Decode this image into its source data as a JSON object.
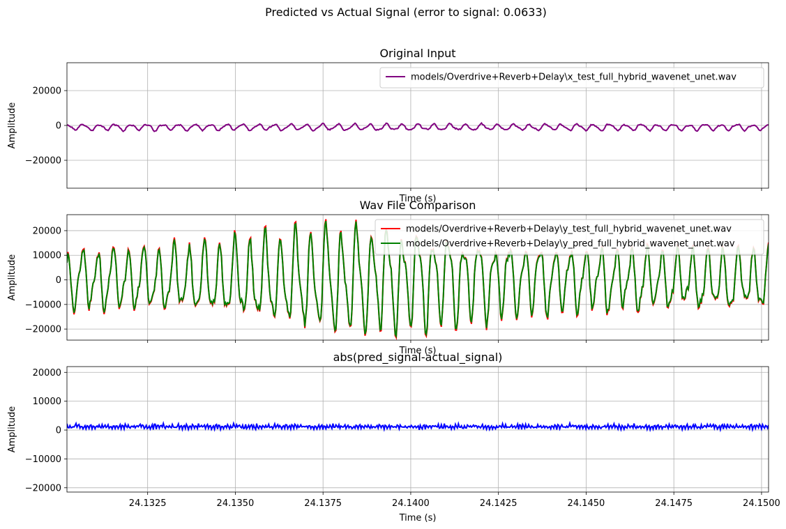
{
  "figure": {
    "suptitle": "Predicted vs Actual Signal (error to signal: 0.0633)"
  },
  "chart_data": [
    {
      "type": "line",
      "title": "Original Input",
      "xlabel": "Time (s)",
      "ylabel": "Amplitude",
      "xlim": [
        24.1302,
        24.1502
      ],
      "ylim": [
        -36000,
        36000
      ],
      "yticks": [
        -20000,
        0,
        20000
      ],
      "ytick_labels": [
        "−20000",
        "0",
        "20000"
      ],
      "show_xtick_labels": false,
      "grid": true,
      "legend_position": "upper right",
      "series": [
        {
          "name": "models/Overdrive+Reverb+Delay\\x_test_full_hybrid_wavenet_unet.wav",
          "color": "#800080",
          "generator": {
            "center": -1000,
            "amplitude": 1600,
            "cycles": 44,
            "noise": 600,
            "seed": 3
          }
        }
      ]
    },
    {
      "type": "line",
      "title": "Wav File Comparison",
      "xlabel": "Time (s)",
      "ylabel": "Amplitude",
      "xlim": [
        24.1302,
        24.1502
      ],
      "ylim": [
        -24500,
        26500
      ],
      "yticks": [
        -20000,
        -10000,
        0,
        10000,
        20000
      ],
      "ytick_labels": [
        "−20000",
        "−10000",
        "0",
        "10000",
        "20000"
      ],
      "show_xtick_labels": false,
      "grid": true,
      "legend_position": "upper right",
      "series": [
        {
          "name": "models/Overdrive+Reverb+Delay\\y_test_full_hybrid_wavenet_unet.wav",
          "color": "#ff0000",
          "generator": {
            "center": 0,
            "amplitude": 11000,
            "peak_amplitude": 19000,
            "cycles": 46,
            "noise": 3000,
            "seed": 7
          }
        },
        {
          "name": "models/Overdrive+Reverb+Delay\\y_pred_full_hybrid_wavenet_unet.wav",
          "color": "#008000",
          "generator": {
            "center": 0,
            "amplitude": 10500,
            "peak_amplitude": 18500,
            "cycles": 46,
            "noise": 2700,
            "seed": 7
          }
        }
      ]
    },
    {
      "type": "line",
      "title": "abs(pred_signal-actual_signal)",
      "xlabel": "Time (s)",
      "ylabel": "Amplitude",
      "xlim": [
        24.1302,
        24.1502
      ],
      "ylim": [
        -21500,
        22000
      ],
      "yticks": [
        -20000,
        -10000,
        0,
        10000,
        20000
      ],
      "ytick_labels": [
        "−20000",
        "−10000",
        "0",
        "10000",
        "20000"
      ],
      "xticks": [
        24.1325,
        24.135,
        24.1375,
        24.14,
        24.1425,
        24.145,
        24.1475,
        24.15
      ],
      "xtick_labels": [
        "24.1325",
        "24.1350",
        "24.1375",
        "24.1400",
        "24.1425",
        "24.1450",
        "24.1475",
        "24.1500"
      ],
      "show_xtick_labels": true,
      "grid": true,
      "series": [
        {
          "name": "",
          "color": "#0000ff",
          "generator": {
            "center": 1300,
            "amplitude": 1800,
            "cycles": 120,
            "noise": 1400,
            "seed": 11,
            "abs": true,
            "max_peak": 5300
          }
        }
      ]
    }
  ]
}
